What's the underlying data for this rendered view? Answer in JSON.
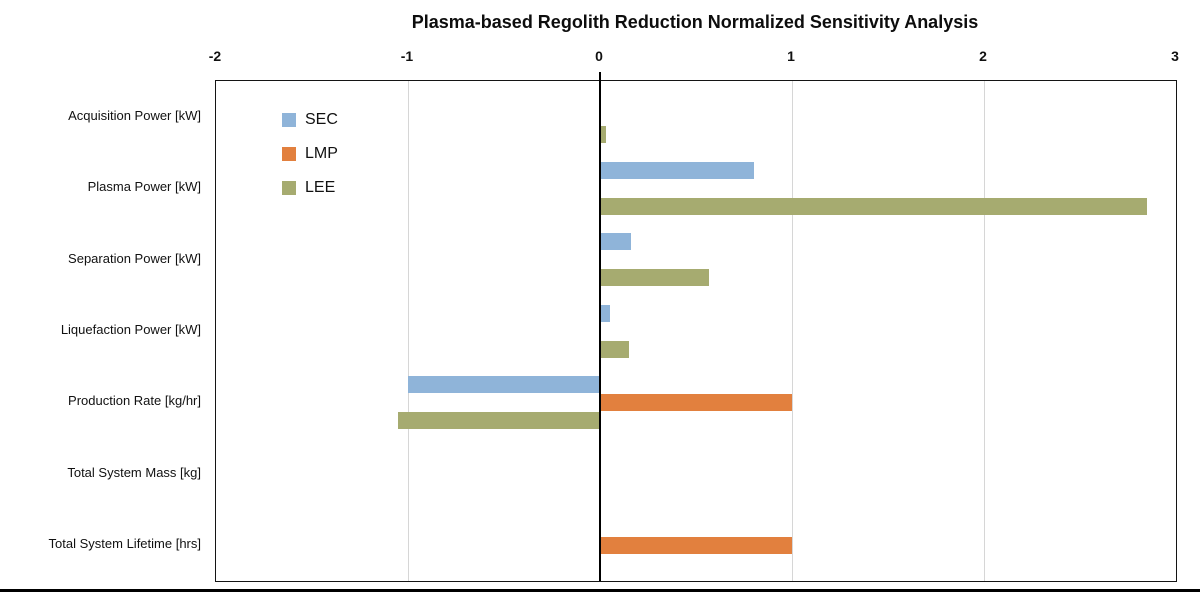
{
  "title": "Plasma-based Regolith Reduction Normalized Sensitivity Analysis",
  "chart_data": {
    "type": "bar",
    "orientation": "horizontal",
    "title": "Plasma-based Regolith Reduction Normalized Sensitivity Analysis",
    "categories": [
      "Acquisition Power [kW]",
      "Plasma Power [kW]",
      "Separation Power [kW]",
      "Liquefaction Power [kW]",
      "Production Rate [kg/hr]",
      "Total System Mass [kg]",
      "Total System Lifetime [hrs]"
    ],
    "series": [
      {
        "name": "SEC",
        "color": "#8FB4D9",
        "values": [
          0,
          0.8,
          0.16,
          0.05,
          -1.0,
          0,
          0
        ]
      },
      {
        "name": "LMP",
        "color": "#E2803E",
        "values": [
          0,
          0,
          0,
          0,
          1.0,
          0,
          1.0
        ]
      },
      {
        "name": "LEE",
        "color": "#A6AB70",
        "values": [
          0.03,
          2.85,
          0.57,
          0.15,
          -1.05,
          0,
          0
        ]
      }
    ],
    "xlim": [
      -2,
      3
    ],
    "xticks": [
      "-2",
      "-1",
      "0",
      "1",
      "2",
      "3"
    ],
    "grid": true,
    "gridcolor": "#d6d6d6",
    "zero_axis_color": "#000000",
    "legend_position": "top-left-inside"
  }
}
